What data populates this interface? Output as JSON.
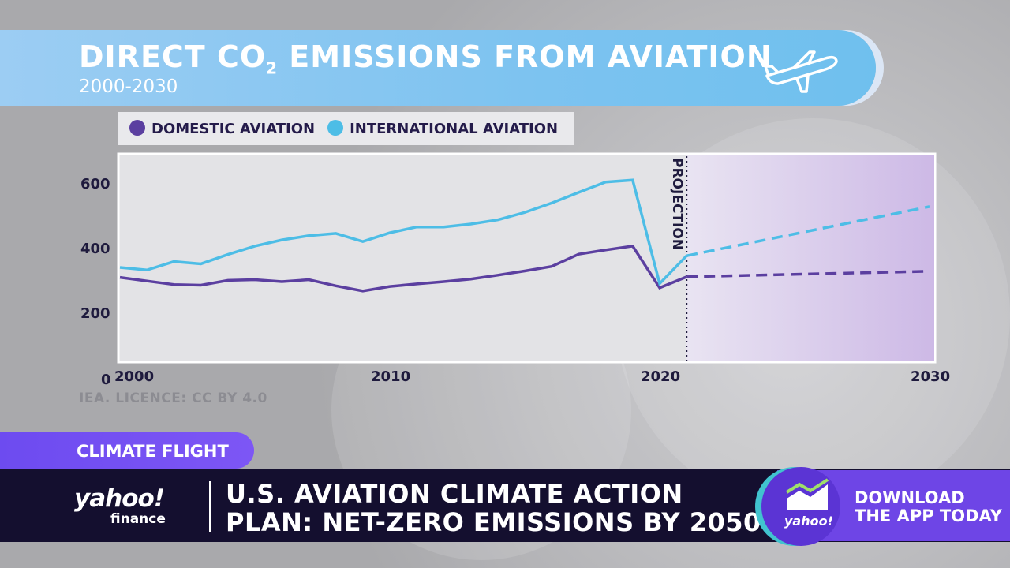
{
  "header": {
    "title_pre": "DIRECT CO",
    "title_sub": "2",
    "title_post": " EMISSIONS FROM AVIATION",
    "subtitle": "2000-2030"
  },
  "source": "IEA. LICENCE: CC BY 4.0",
  "tag": "CLIMATE FLIGHT",
  "ticker": {
    "logo": "yahoo!",
    "logo_sub": "finance",
    "headline_1": "U.S. AVIATION CLIMATE ACTION",
    "headline_2": "PLAN: NET-ZERO EMISSIONS BY 2050"
  },
  "promo": {
    "line1": "DOWNLOAD",
    "line2": "THE APP TODAY",
    "logo": "yahoo!"
  },
  "chart_data": {
    "type": "line",
    "title": "DIRECT CO2 EMISSIONS FROM AVIATION",
    "subtitle": "2000-2030",
    "annotation": "PROJECTION",
    "projection_start": 2021,
    "xlim": [
      2000,
      2030
    ],
    "ylim": [
      0,
      695
    ],
    "x_ticks": [
      2000,
      2010,
      2020,
      2030
    ],
    "y_ticks": [
      0,
      200,
      400,
      600
    ],
    "grid": false,
    "legend": "top-left",
    "x": [
      2000,
      2001,
      2002,
      2003,
      2004,
      2005,
      2006,
      2007,
      2008,
      2009,
      2010,
      2011,
      2012,
      2013,
      2014,
      2015,
      2016,
      2017,
      2018,
      2019,
      2020,
      2021
    ],
    "series": [
      {
        "name": "DOMESTIC AVIATION",
        "color": "#5b3fa0",
        "values": [
          313,
          302,
          291,
          289,
          304,
          306,
          300,
          306,
          287,
          271,
          285,
          293,
          300,
          308,
          320,
          333,
          347,
          385,
          398,
          410,
          281,
          315
        ],
        "projection": {
          "x": [
            2021,
            2030
          ],
          "values": [
            315,
            332
          ]
        }
      },
      {
        "name": "INTERNATIONAL AVIATION",
        "color": "#4dbde6",
        "values": [
          344,
          336,
          362,
          355,
          384,
          410,
          429,
          442,
          449,
          424,
          451,
          469,
          469,
          478,
          491,
          514,
          543,
          576,
          608,
          614,
          294,
          380
        ],
        "projection": {
          "x": [
            2021,
            2030
          ],
          "values": [
            380,
            532
          ]
        }
      }
    ]
  }
}
